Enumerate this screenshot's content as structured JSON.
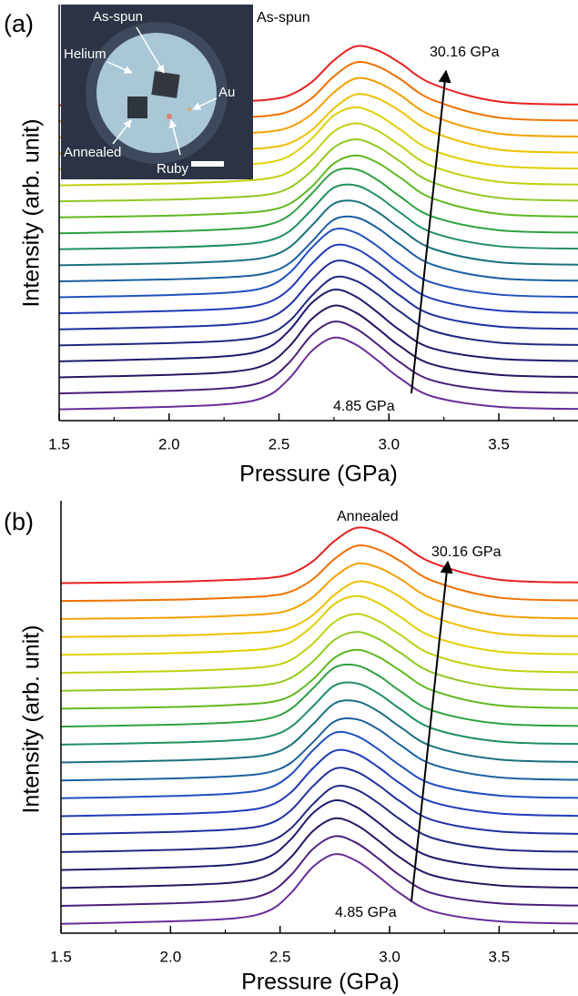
{
  "chart_data": [
    {
      "type": "line",
      "panel_label": "(a)",
      "xlabel": "Pressure (GPa)",
      "ylabel": "Intensity (arb. unit)",
      "annotations": [
        "As-spun",
        "30.16 GPa",
        "4.85 GPa"
      ],
      "inset_labels": [
        "As-spun",
        "Helium",
        "Au",
        "Annealed",
        "Ruby"
      ],
      "xlim": [
        1.5,
        3.86
      ],
      "ylim": [
        -0.68,
        25.3
      ],
      "xticks": [
        1.5,
        {
          "value": 2,
          "label": "2.0"
        },
        2.5,
        {
          "value": 3,
          "label": "3.0"
        },
        3.5
      ],
      "xminorticks": [
        1.75,
        2.25,
        2.75,
        3.25,
        3.75
      ],
      "x": [
        1.5,
        2.0,
        2.3,
        2.45,
        2.55,
        2.65,
        2.75,
        2.85,
        2.95,
        3.05,
        3.2,
        3.5,
        3.9
      ],
      "series": [
        {
          "color": "#6a2c9a",
          "values": [
            0.02,
            0.18,
            0.39,
            0.88,
            2.0,
            3.68,
            4.5,
            4.06,
            3.06,
            1.97,
            0.82,
            0.18,
            0.04
          ]
        },
        {
          "color": "#4a1f7a",
          "values": [
            1.02,
            1.18,
            1.39,
            1.88,
            3.0,
            4.68,
            5.5,
            5.06,
            4.06,
            2.97,
            1.82,
            1.18,
            1.04
          ]
        },
        {
          "color": "#2a1460",
          "values": [
            2.02,
            2.18,
            2.39,
            2.88,
            4.0,
            5.68,
            6.5,
            6.06,
            5.06,
            3.97,
            2.82,
            2.18,
            2.04
          ]
        },
        {
          "color": "#1c1a6e",
          "values": [
            3.02,
            3.18,
            3.39,
            3.88,
            5.0,
            6.68,
            7.5,
            7.06,
            6.06,
            4.97,
            3.82,
            3.18,
            3.04
          ]
        },
        {
          "color": "#202880",
          "values": [
            4.02,
            4.16,
            4.34,
            4.7,
            5.57,
            7.13,
            8.26,
            8.05,
            7.19,
            6.13,
            4.92,
            4.19,
            4.04
          ]
        },
        {
          "color": "#2030a0",
          "values": [
            5.02,
            5.16,
            5.34,
            5.7,
            6.57,
            8.13,
            9.26,
            9.05,
            8.19,
            7.13,
            5.92,
            5.19,
            5.04
          ]
        },
        {
          "color": "#1f3cb8",
          "values": [
            6.02,
            6.16,
            6.34,
            6.7,
            7.57,
            9.13,
            10.26,
            10.05,
            9.19,
            8.13,
            6.92,
            6.19,
            6.04
          ]
        },
        {
          "color": "#2050c0",
          "values": [
            7.02,
            7.16,
            7.34,
            7.7,
            8.57,
            10.13,
            11.26,
            11.05,
            10.19,
            9.13,
            7.92,
            7.19,
            7.04
          ]
        },
        {
          "color": "#1a60a0",
          "values": [
            8.02,
            8.14,
            8.3,
            8.55,
            9.17,
            10.51,
            11.87,
            12.01,
            11.33,
            10.32,
            9.05,
            8.21,
            8.05
          ]
        },
        {
          "color": "#1a7080",
          "values": [
            9.02,
            9.14,
            9.3,
            9.55,
            10.17,
            11.51,
            12.87,
            13.01,
            12.33,
            11.32,
            10.05,
            9.21,
            9.05
          ]
        },
        {
          "color": "#209060",
          "values": [
            10.02,
            10.14,
            10.3,
            10.55,
            11.17,
            12.51,
            13.87,
            14.01,
            13.33,
            12.32,
            11.05,
            10.21,
            10.05
          ]
        },
        {
          "color": "#30a040",
          "values": [
            11.02,
            11.14,
            11.3,
            11.55,
            12.17,
            13.51,
            14.87,
            15.01,
            14.33,
            13.32,
            12.05,
            11.21,
            11.05
          ]
        },
        {
          "color": "#60b820",
          "values": [
            12.01,
            12.12,
            12.27,
            12.44,
            12.87,
            13.94,
            15.38,
            15.88,
            15.41,
            14.51,
            13.19,
            12.23,
            12.05
          ]
        },
        {
          "color": "#90c820",
          "values": [
            13.01,
            13.12,
            13.27,
            13.44,
            13.87,
            14.94,
            16.38,
            16.88,
            16.41,
            15.51,
            14.19,
            13.23,
            13.05
          ]
        },
        {
          "color": "#c0d010",
          "values": [
            14.01,
            14.12,
            14.27,
            14.44,
            14.87,
            15.94,
            17.38,
            17.88,
            17.41,
            16.51,
            15.19,
            14.23,
            14.05
          ]
        },
        {
          "color": "#e0d000",
          "values": [
            15.01,
            15.12,
            15.27,
            15.44,
            15.87,
            16.94,
            18.38,
            18.88,
            18.41,
            17.51,
            16.19,
            15.23,
            15.05
          ]
        },
        {
          "color": "#f0c000",
          "values": [
            16.01,
            16.1,
            16.24,
            16.36,
            16.65,
            17.47,
            18.82,
            19.69,
            19.43,
            18.66,
            17.34,
            16.24,
            16.05
          ]
        },
        {
          "color": "#f5a000",
          "values": [
            17.01,
            17.1,
            17.24,
            17.36,
            17.65,
            18.47,
            19.82,
            20.69,
            20.43,
            19.66,
            18.34,
            17.24,
            17.05
          ]
        },
        {
          "color": "#f07000",
          "values": [
            18.01,
            18.1,
            18.24,
            18.36,
            18.65,
            19.47,
            20.82,
            21.69,
            21.43,
            20.66,
            19.34,
            18.24,
            18.05
          ]
        },
        {
          "color": "#e82020",
          "values": [
            19.01,
            19.1,
            19.24,
            19.36,
            19.65,
            20.47,
            21.82,
            22.69,
            22.43,
            21.66,
            20.34,
            19.24,
            19.05
          ]
        }
      ]
    },
    {
      "type": "line",
      "panel_label": "(b)",
      "xlabel": "Pressure (GPa)",
      "ylabel": "Intensity (arb. unit)",
      "annotations": [
        "Annealed",
        "30.16 GPa",
        "4.85 GPa"
      ],
      "xlim": [
        1.5,
        3.86
      ],
      "ylim": [
        -0.5,
        23.6
      ],
      "xticks": [
        1.5,
        {
          "value": 2,
          "label": "2.0"
        },
        2.5,
        {
          "value": 3,
          "label": "3.0"
        },
        3.5
      ],
      "xminorticks": [
        1.75,
        2.25,
        2.75,
        3.25,
        3.75
      ],
      "x": [
        1.5,
        2.0,
        2.3,
        2.45,
        2.55,
        2.65,
        2.75,
        2.85,
        2.95,
        3.05,
        3.2,
        3.5,
        3.9
      ],
      "series": [
        {
          "color": "#6a2c9a",
          "values": [
            0.02,
            0.16,
            0.34,
            0.76,
            1.74,
            3.19,
            3.9,
            3.52,
            2.65,
            1.7,
            0.71,
            0.16,
            0.03
          ]
        },
        {
          "color": "#4a1f7a",
          "values": [
            1.02,
            1.16,
            1.34,
            1.76,
            2.74,
            4.19,
            4.9,
            4.52,
            3.65,
            2.7,
            1.71,
            1.16,
            1.03
          ]
        },
        {
          "color": "#2a1460",
          "values": [
            2.02,
            2.16,
            2.34,
            2.76,
            3.74,
            5.19,
            5.9,
            5.52,
            4.65,
            3.7,
            2.71,
            2.16,
            2.03
          ]
        },
        {
          "color": "#1c1a6e",
          "values": [
            3.02,
            3.16,
            3.34,
            3.76,
            4.74,
            6.19,
            6.9,
            6.52,
            5.65,
            4.7,
            3.71,
            3.16,
            3.03
          ]
        },
        {
          "color": "#202880",
          "values": [
            4.02,
            4.14,
            4.3,
            4.6,
            5.35,
            6.69,
            7.67,
            7.49,
            6.74,
            5.83,
            4.79,
            4.17,
            4.03
          ]
        },
        {
          "color": "#2030a0",
          "values": [
            5.02,
            5.14,
            5.3,
            5.6,
            6.35,
            7.69,
            8.67,
            8.49,
            7.74,
            6.83,
            5.79,
            5.17,
            5.03
          ]
        },
        {
          "color": "#1f3cb8",
          "values": [
            6.02,
            6.14,
            6.3,
            6.6,
            7.35,
            8.69,
            9.67,
            9.49,
            8.74,
            7.83,
            6.79,
            6.17,
            6.03
          ]
        },
        {
          "color": "#2050c0",
          "values": [
            7.02,
            7.14,
            7.3,
            7.6,
            8.35,
            9.69,
            10.67,
            10.49,
            9.74,
            8.83,
            7.79,
            7.17,
            7.03
          ]
        },
        {
          "color": "#1a60a0",
          "values": [
            8.01,
            8.12,
            8.26,
            8.47,
            9.0,
            10.14,
            11.31,
            11.42,
            10.85,
            9.98,
            8.89,
            8.18,
            8.04
          ]
        },
        {
          "color": "#1a7080",
          "values": [
            9.01,
            9.12,
            9.26,
            9.47,
            10.0,
            11.14,
            12.31,
            12.42,
            11.85,
            10.98,
            9.89,
            9.18,
            9.04
          ]
        },
        {
          "color": "#209060",
          "values": [
            10.01,
            10.12,
            10.26,
            10.47,
            11.0,
            12.14,
            13.31,
            13.42,
            12.85,
            11.98,
            10.89,
            10.18,
            10.04
          ]
        },
        {
          "color": "#30a040",
          "values": [
            11.01,
            11.12,
            11.26,
            11.47,
            12.0,
            13.14,
            14.31,
            14.42,
            13.85,
            12.98,
            11.89,
            11.18,
            11.04
          ]
        },
        {
          "color": "#60b820",
          "values": [
            12.01,
            12.1,
            12.23,
            12.37,
            12.73,
            13.64,
            14.86,
            15.29,
            14.89,
            14.12,
            13.01,
            12.19,
            12.04
          ]
        },
        {
          "color": "#90c820",
          "values": [
            13.01,
            13.1,
            13.23,
            13.37,
            13.73,
            14.64,
            15.86,
            16.29,
            15.89,
            15.12,
            14.01,
            13.19,
            13.04
          ]
        },
        {
          "color": "#c0d010",
          "values": [
            14.01,
            14.1,
            14.23,
            14.37,
            14.73,
            15.64,
            16.86,
            17.29,
            16.89,
            16.12,
            15.01,
            14.19,
            14.04
          ]
        },
        {
          "color": "#e0d000",
          "values": [
            15.01,
            15.1,
            15.23,
            15.37,
            15.73,
            16.64,
            17.86,
            18.29,
            17.89,
            17.12,
            16.01,
            15.19,
            15.04
          ]
        },
        {
          "color": "#f0c000",
          "values": [
            16.01,
            16.08,
            16.2,
            16.3,
            16.54,
            17.23,
            18.37,
            19.09,
            18.87,
            18.23,
            17.12,
            16.2,
            16.04
          ]
        },
        {
          "color": "#f5a000",
          "values": [
            17.01,
            17.08,
            17.2,
            17.3,
            17.54,
            18.23,
            19.37,
            20.09,
            19.87,
            19.23,
            18.12,
            17.2,
            17.04
          ]
        },
        {
          "color": "#f07000",
          "values": [
            18.01,
            18.08,
            18.2,
            18.3,
            18.54,
            19.23,
            20.37,
            21.09,
            20.87,
            20.23,
            19.12,
            18.2,
            18.04
          ]
        },
        {
          "color": "#e82020",
          "values": [
            19.01,
            19.08,
            19.2,
            19.3,
            19.54,
            20.23,
            21.37,
            22.09,
            21.87,
            21.23,
            20.12,
            19.2,
            19.04
          ]
        }
      ]
    }
  ]
}
